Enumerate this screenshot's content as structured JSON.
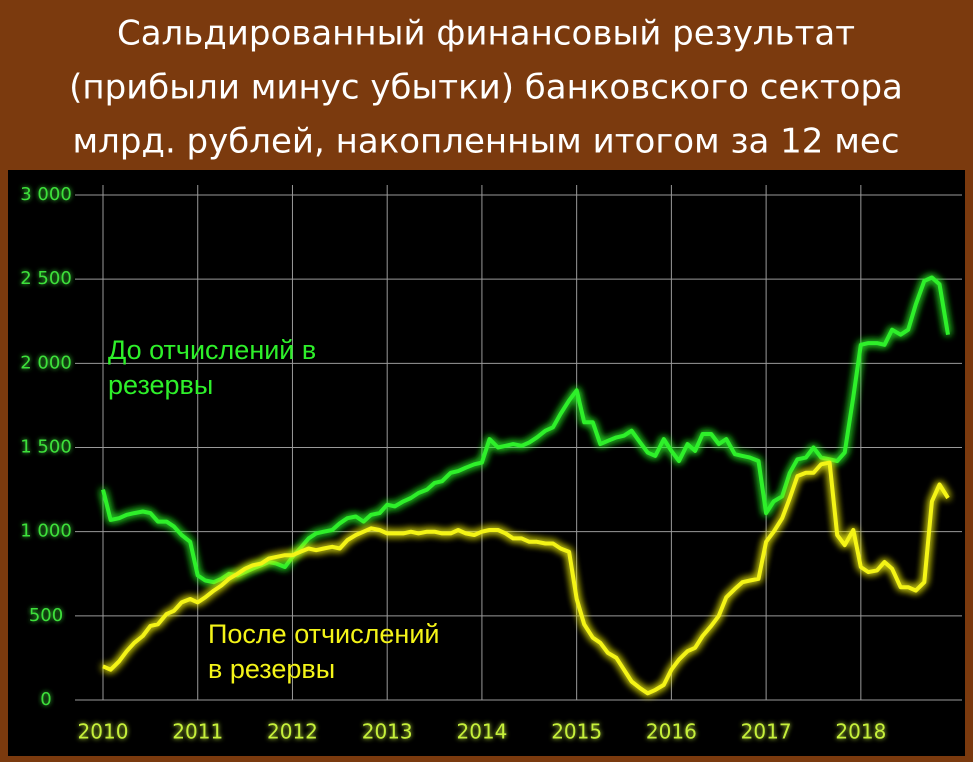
{
  "chart_data": {
    "type": "line",
    "title": [
      "Сальдированный финансовый результат",
      "(прибыли минус убытки) банковского сектора",
      "млрд. рублей, накопленным итогом за 12 мес"
    ],
    "x": [
      2010,
      2010.08,
      2010.17,
      2010.25,
      2010.33,
      2010.42,
      2010.5,
      2010.58,
      2010.67,
      2010.75,
      2010.83,
      2010.92,
      2011,
      2011.08,
      2011.17,
      2011.25,
      2011.33,
      2011.42,
      2011.5,
      2011.58,
      2011.67,
      2011.75,
      2011.83,
      2011.92,
      2012,
      2012.08,
      2012.17,
      2012.25,
      2012.33,
      2012.42,
      2012.5,
      2012.58,
      2012.67,
      2012.75,
      2012.83,
      2012.92,
      2013,
      2013.08,
      2013.17,
      2013.25,
      2013.33,
      2013.42,
      2013.5,
      2013.58,
      2013.67,
      2013.75,
      2013.83,
      2013.92,
      2014,
      2014.08,
      2014.17,
      2014.25,
      2014.33,
      2014.42,
      2014.5,
      2014.58,
      2014.67,
      2014.75,
      2014.83,
      2014.92,
      2015,
      2015.08,
      2015.17,
      2015.25,
      2015.33,
      2015.42,
      2015.5,
      2015.58,
      2015.67,
      2015.75,
      2015.83,
      2015.92,
      2016,
      2016.08,
      2016.17,
      2016.25,
      2016.33,
      2016.42,
      2016.5,
      2016.58,
      2016.67,
      2016.75,
      2016.83,
      2016.92,
      2017,
      2017.08,
      2017.17,
      2017.25,
      2017.33,
      2017.42,
      2017.5,
      2017.58,
      2017.67,
      2017.75,
      2017.83,
      2017.92,
      2018,
      2018.08,
      2018.17,
      2018.25,
      2018.33,
      2018.42,
      2018.5,
      2018.58,
      2018.67,
      2018.75,
      2018.83,
      2018.92
    ],
    "series": [
      {
        "label": [
          "До отчислений в",
          "резервы"
        ],
        "color": "#2ef02a",
        "values": [
          1250,
          1070,
          1080,
          1100,
          1110,
          1120,
          1110,
          1060,
          1060,
          1030,
          980,
          940,
          740,
          710,
          700,
          720,
          750,
          740,
          760,
          780,
          800,
          820,
          810,
          790,
          850,
          900,
          960,
          990,
          1000,
          1010,
          1050,
          1080,
          1090,
          1060,
          1100,
          1110,
          1160,
          1150,
          1180,
          1200,
          1230,
          1250,
          1290,
          1300,
          1350,
          1360,
          1380,
          1400,
          1410,
          1550,
          1500,
          1510,
          1520,
          1510,
          1530,
          1560,
          1600,
          1620,
          1700,
          1780,
          1840,
          1650,
          1650,
          1520,
          1540,
          1560,
          1570,
          1600,
          1530,
          1470,
          1450,
          1550,
          1480,
          1420,
          1520,
          1480,
          1580,
          1580,
          1520,
          1550,
          1460,
          1450,
          1440,
          1420,
          1110,
          1180,
          1210,
          1350,
          1430,
          1440,
          1500,
          1440,
          1430,
          1420,
          1470,
          1800,
          2110,
          2120,
          2120,
          2110,
          2200,
          2170,
          2200,
          2350,
          2490,
          2510,
          2470,
          2170
        ]
      },
      {
        "label": [
          "После отчислений",
          "в резервы"
        ],
        "color": "#f4f418",
        "values": [
          200,
          180,
          230,
          290,
          340,
          380,
          440,
          450,
          510,
          530,
          580,
          600,
          580,
          610,
          650,
          680,
          720,
          750,
          780,
          800,
          810,
          840,
          850,
          860,
          860,
          880,
          900,
          890,
          900,
          910,
          900,
          950,
          980,
          1000,
          1020,
          1010,
          990,
          990,
          990,
          1000,
          990,
          1000,
          1000,
          990,
          990,
          1010,
          990,
          980,
          1000,
          1010,
          1010,
          990,
          960,
          960,
          940,
          940,
          930,
          930,
          900,
          880,
          600,
          450,
          370,
          340,
          280,
          250,
          180,
          110,
          70,
          40,
          60,
          90,
          180,
          240,
          290,
          310,
          380,
          440,
          500,
          610,
          660,
          700,
          710,
          720,
          940,
          1000,
          1080,
          1200,
          1330,
          1350,
          1350,
          1400,
          1410,
          980,
          920,
          1010,
          790,
          760,
          770,
          820,
          780,
          670,
          670,
          650,
          700,
          1180,
          1280,
          1200
        ]
      }
    ],
    "xlim": [
      2010,
      2018.92
    ],
    "xticks": [
      2010,
      2011,
      2012,
      2013,
      2014,
      2015,
      2016,
      2017,
      2018
    ],
    "ylim": [
      0,
      3000
    ],
    "yticks": [
      0,
      500,
      {
        "value": 1000,
        "label": "1 000"
      },
      {
        "value": 1500,
        "label": "1 500"
      },
      {
        "value": 2000,
        "label": "2 000"
      },
      {
        "value": 2500,
        "label": "2 500"
      },
      {
        "value": 3000,
        "label": "3 000"
      }
    ],
    "grid": true
  }
}
